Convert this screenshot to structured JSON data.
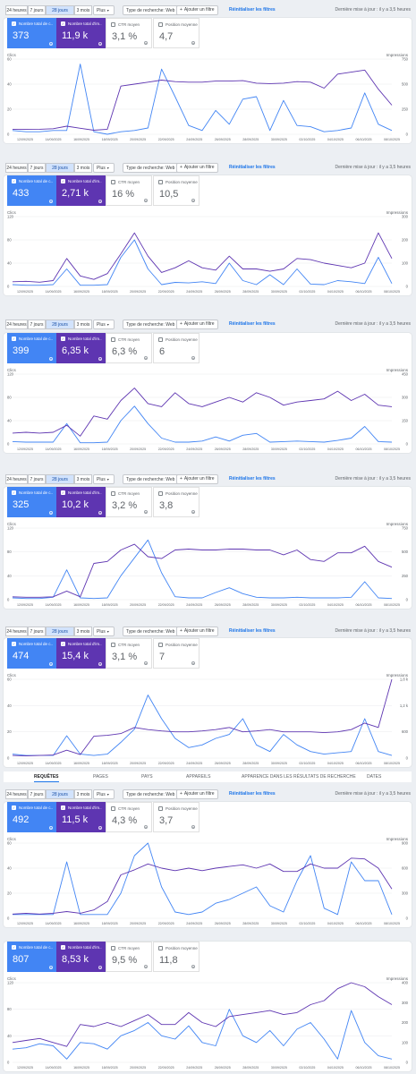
{
  "toolbar": {
    "ranges": [
      "24 heures",
      "7 jours",
      "28 jours",
      "3 mois"
    ],
    "selected_range": "28 jours",
    "more": "Plus",
    "search_type": "Type de recherche: Web",
    "add_filter": "Ajouter un filtre",
    "reset": "Réinitialiser les filtres",
    "status_a": "Dernière mise à jour : il y a 3,5 heures",
    "status_b": "Dernière mise à jour : il y a 3,5 heures"
  },
  "metric_labels": {
    "clicks": "Nombre total de c...",
    "impressions": "Nombre total d'im...",
    "ctr": "CTR moyen",
    "position": "Position moyenne"
  },
  "chart_labels": {
    "left_axis": "Clics",
    "right_axis": "Impressions",
    "dates": [
      "12/09/2025",
      "14/09/2025",
      "16/09/2025",
      "18/09/2025",
      "20/09/2025",
      "22/09/2025",
      "24/09/2025",
      "26/09/2025",
      "28/09/2025",
      "30/09/2025",
      "02/10/2025",
      "04/10/2025",
      "06/10/2025",
      "08/10/2025"
    ]
  },
  "colors": {
    "clicks": "#4285f4",
    "impressions": "#5e35b1",
    "link": "#1a73e8"
  },
  "tabs": {
    "items": [
      "REQUÊTES",
      "PAGES",
      "PAYS",
      "APPAREILS",
      "APPARENCE DANS LES RÉSULTATS DE RECHERCHE",
      "DATES"
    ],
    "active": "REQUÊTES"
  },
  "panels": [
    {
      "toolbar": true,
      "status": "Dernière mise à jour : il y a 3,5 heures",
      "clicks": "373",
      "impressions": "11,9 k",
      "ctr": "3,1 %",
      "position": "4,7",
      "chart_data": {
        "type": "line",
        "x": [
          "12/09/2025",
          "13/09/2025",
          "14/09/2025",
          "15/09/2025",
          "16/09/2025",
          "17/09/2025",
          "18/09/2025",
          "19/09/2025",
          "20/09/2025",
          "21/09/2025",
          "22/09/2025",
          "23/09/2025",
          "24/09/2025",
          "25/09/2025",
          "26/09/2025",
          "27/09/2025",
          "28/09/2025",
          "29/09/2025",
          "30/09/2025",
          "01/10/2025",
          "02/10/2025",
          "03/10/2025",
          "04/10/2025",
          "05/10/2025",
          "06/10/2025",
          "07/10/2025",
          "08/10/2025",
          "09/10/2025",
          "10/10/2025"
        ],
        "left_ticks": [
          "0",
          "20",
          "40",
          "60"
        ],
        "right_ticks": [
          "0",
          "250",
          "500",
          "750"
        ],
        "ylim_left": [
          0,
          60
        ],
        "ylim_right": [
          0,
          750
        ],
        "series": [
          {
            "name": "Clics",
            "axis": "left",
            "values": [
              3,
              2,
              2,
              3,
              3,
              56,
              2,
              0,
              2,
              3,
              5,
              52,
              30,
              7,
              3,
              19,
              8,
              28,
              30,
              3,
              27,
              7,
              6,
              2,
              3,
              5,
              33,
              8,
              3
            ]
          },
          {
            "name": "Impressions",
            "axis": "right",
            "values": [
              50,
              48,
              50,
              55,
              80,
              60,
              40,
              50,
              480,
              500,
              520,
              540,
              525,
              520,
              520,
              530,
              530,
              535,
              510,
              505,
              510,
              525,
              520,
              460,
              600,
              620,
              640,
              450,
              290
            ]
          }
        ]
      }
    },
    {
      "toolbar": true,
      "status": "Dernière mise à jour : il y a 3,5 heures",
      "clicks": "433",
      "impressions": "2,71 k",
      "ctr": "16 %",
      "position": "10,5",
      "chart_data": {
        "type": "line",
        "x": [
          "12/09/2025",
          "13/09/2025",
          "14/09/2025",
          "15/09/2025",
          "16/09/2025",
          "17/09/2025",
          "18/09/2025",
          "19/09/2025",
          "20/09/2025",
          "21/09/2025",
          "22/09/2025",
          "23/09/2025",
          "24/09/2025",
          "25/09/2025",
          "26/09/2025",
          "27/09/2025",
          "28/09/2025",
          "29/09/2025",
          "30/09/2025",
          "01/10/2025",
          "02/10/2025",
          "03/10/2025",
          "04/10/2025",
          "05/10/2025",
          "06/10/2025",
          "07/10/2025",
          "08/10/2025",
          "09/10/2025",
          "10/10/2025"
        ],
        "left_ticks": [
          "0",
          "40",
          "80",
          "120"
        ],
        "right_ticks": [
          "0",
          "100",
          "200",
          "300"
        ],
        "ylim_left": [
          0,
          120
        ],
        "ylim_right": [
          0,
          300
        ],
        "series": [
          {
            "name": "Clics",
            "axis": "left",
            "values": [
              3,
              2,
              2,
              3,
              30,
              2,
              2,
              3,
              50,
              80,
              30,
              3,
              7,
              6,
              8,
              5,
              40,
              10,
              3,
              20,
              3,
              30,
              4,
              3,
              10,
              8,
              5,
              50,
              5
            ]
          },
          {
            "name": "Impressions",
            "axis": "right",
            "values": [
              20,
              22,
              18,
              25,
              120,
              45,
              30,
              55,
              140,
              230,
              130,
              60,
              80,
              110,
              80,
              70,
              130,
              75,
              75,
              65,
              75,
              120,
              115,
              100,
              90,
              80,
              100,
              230,
              120
            ]
          }
        ]
      }
    },
    {
      "toolbar": true,
      "status": "Dernière mise à jour : il y a 3,5 heures",
      "clicks": "399",
      "impressions": "6,35 k",
      "ctr": "6,3 %",
      "position": "6",
      "chart_data": {
        "type": "line",
        "x": [
          "12/09/2025",
          "13/09/2025",
          "14/09/2025",
          "15/09/2025",
          "16/09/2025",
          "17/09/2025",
          "18/09/2025",
          "19/09/2025",
          "20/09/2025",
          "21/09/2025",
          "22/09/2025",
          "23/09/2025",
          "24/09/2025",
          "25/09/2025",
          "26/09/2025",
          "27/09/2025",
          "28/09/2025",
          "29/09/2025",
          "30/09/2025",
          "01/10/2025",
          "02/10/2025",
          "03/10/2025",
          "04/10/2025",
          "05/10/2025",
          "06/10/2025",
          "07/10/2025",
          "08/10/2025",
          "09/10/2025",
          "10/10/2025"
        ],
        "left_ticks": [
          "0",
          "40",
          "80",
          "120"
        ],
        "right_ticks": [
          "0",
          "150",
          "300",
          "450"
        ],
        "ylim_left": [
          0,
          120
        ],
        "ylim_right": [
          0,
          450
        ],
        "series": [
          {
            "name": "Clics",
            "axis": "left",
            "values": [
              4,
              3,
              3,
              3,
              35,
              2,
              2,
              3,
              40,
              65,
              35,
              10,
              3,
              3,
              5,
              12,
              5,
              15,
              18,
              3,
              4,
              5,
              4,
              3,
              6,
              10,
              30,
              4,
              3
            ]
          },
          {
            "name": "Impressions",
            "axis": "right",
            "values": [
              70,
              75,
              70,
              75,
              120,
              50,
              180,
              160,
              280,
              360,
              260,
              240,
              330,
              260,
              240,
              270,
              300,
              270,
              330,
              300,
              250,
              270,
              280,
              290,
              340,
              280,
              320,
              250,
              240
            ]
          }
        ]
      }
    },
    {
      "toolbar": true,
      "status": "Dernière mise à jour : il y a 3,5 heures",
      "clicks": "325",
      "impressions": "10,2 k",
      "ctr": "3,2 %",
      "position": "3,8",
      "chart_data": {
        "type": "line",
        "x": [
          "12/09/2025",
          "13/09/2025",
          "14/09/2025",
          "15/09/2025",
          "16/09/2025",
          "17/09/2025",
          "18/09/2025",
          "19/09/2025",
          "20/09/2025",
          "21/09/2025",
          "22/09/2025",
          "23/09/2025",
          "24/09/2025",
          "25/09/2025",
          "26/09/2025",
          "27/09/2025",
          "28/09/2025",
          "29/09/2025",
          "30/09/2025",
          "01/10/2025",
          "02/10/2025",
          "03/10/2025",
          "04/10/2025",
          "05/10/2025",
          "06/10/2025",
          "07/10/2025",
          "08/10/2025",
          "09/10/2025",
          "10/10/2025"
        ],
        "left_ticks": [
          "0",
          "40",
          "80",
          "120"
        ],
        "right_ticks": [
          "0",
          "250",
          "500",
          "750"
        ],
        "ylim_left": [
          0,
          120
        ],
        "ylim_right": [
          0,
          750
        ],
        "series": [
          {
            "name": "Clics",
            "axis": "left",
            "values": [
              3,
              2,
              2,
              4,
              50,
              3,
              2,
              3,
              40,
              70,
              100,
              45,
              5,
              3,
              3,
              12,
              20,
              10,
              4,
              3,
              3,
              4,
              3,
              3,
              3,
              4,
              30,
              3,
              2
            ]
          },
          {
            "name": "Impressions",
            "axis": "right",
            "values": [
              30,
              25,
              25,
              30,
              90,
              30,
              380,
              400,
              520,
              580,
              450,
              430,
              520,
              530,
              520,
              520,
              530,
              530,
              520,
              520,
              470,
              520,
              420,
              400,
              490,
              490,
              560,
              400,
              340
            ]
          }
        ]
      }
    },
    {
      "toolbar": true,
      "status": "Dernière mise à jour : il y a 3,5 heures",
      "clicks": "474",
      "impressions": "15,4 k",
      "ctr": "3,1 %",
      "position": "7",
      "chart_data": {
        "type": "line",
        "x": [
          "12/09/2025",
          "13/09/2025",
          "14/09/2025",
          "15/09/2025",
          "16/09/2025",
          "17/09/2025",
          "18/09/2025",
          "19/09/2025",
          "20/09/2025",
          "21/09/2025",
          "22/09/2025",
          "23/09/2025",
          "24/09/2025",
          "25/09/2025",
          "26/09/2025",
          "27/09/2025",
          "28/09/2025",
          "29/09/2025",
          "30/09/2025",
          "01/10/2025",
          "02/10/2025",
          "03/10/2025",
          "04/10/2025",
          "05/10/2025",
          "06/10/2025",
          "07/10/2025",
          "08/10/2025",
          "09/10/2025",
          "10/10/2025"
        ],
        "left_ticks": [
          "0",
          "20",
          "40",
          "60"
        ],
        "right_ticks": [
          "0",
          "600",
          "1,2 k",
          "1,8 k"
        ],
        "ylim_left": [
          0,
          60
        ],
        "ylim_right": [
          0,
          1800
        ],
        "series": [
          {
            "name": "Clics",
            "axis": "left",
            "values": [
              3,
              2,
              2,
              2,
              17,
              3,
              2,
              3,
              12,
              22,
              48,
              30,
              15,
              8,
              10,
              15,
              18,
              30,
              10,
              5,
              18,
              10,
              5,
              3,
              4,
              5,
              30,
              5,
              2
            ]
          },
          {
            "name": "Impressions",
            "axis": "right",
            "values": [
              60,
              50,
              60,
              70,
              180,
              80,
              500,
              520,
              560,
              700,
              650,
              620,
              600,
              600,
              620,
              650,
              700,
              600,
              620,
              650,
              600,
              600,
              600,
              580,
              600,
              650,
              800,
              700,
              1850
            ]
          }
        ]
      }
    },
    {
      "toolbar": true,
      "status": "Dernière mise à jour : il y a 3,5 heures",
      "clicks": "492",
      "impressions": "11,5 k",
      "ctr": "4,3 %",
      "position": "3,7",
      "chart_data": {
        "type": "line",
        "x": [
          "12/09/2025",
          "13/09/2025",
          "14/09/2025",
          "15/09/2025",
          "16/09/2025",
          "17/09/2025",
          "18/09/2025",
          "19/09/2025",
          "20/09/2025",
          "21/09/2025",
          "22/09/2025",
          "23/09/2025",
          "24/09/2025",
          "25/09/2025",
          "26/09/2025",
          "27/09/2025",
          "28/09/2025",
          "29/09/2025",
          "30/09/2025",
          "01/10/2025",
          "02/10/2025",
          "03/10/2025",
          "04/10/2025",
          "05/10/2025",
          "06/10/2025",
          "07/10/2025",
          "08/10/2025",
          "09/10/2025",
          "10/10/2025"
        ],
        "left_ticks": [
          "0",
          "20",
          "40",
          "60"
        ],
        "right_ticks": [
          "0",
          "300",
          "600",
          "900"
        ],
        "ylim_left": [
          0,
          60
        ],
        "ylim_right": [
          0,
          900
        ],
        "series": [
          {
            "name": "Clics",
            "axis": "left",
            "values": [
              3,
              3,
              3,
              3,
              45,
              3,
              3,
              3,
              20,
              50,
              75,
              25,
              5,
              3,
              5,
              12,
              15,
              20,
              25,
              10,
              5,
              30,
              50,
              8,
              3,
              45,
              30,
              30,
              3
            ]
          },
          {
            "name": "Impressions",
            "axis": "right",
            "values": [
              50,
              60,
              50,
              60,
              80,
              60,
              100,
              200,
              520,
              580,
              650,
              600,
              570,
              600,
              570,
              600,
              620,
              640,
              600,
              650,
              560,
              560,
              650,
              600,
              600,
              720,
              710,
              600,
              350
            ]
          }
        ]
      }
    },
    {
      "toolbar": false,
      "clicks": "807",
      "impressions": "8,53 k",
      "ctr": "9,5 %",
      "position": "11,8",
      "chart_data": {
        "type": "line",
        "x": [
          "12/09/2025",
          "13/09/2025",
          "14/09/2025",
          "15/09/2025",
          "16/09/2025",
          "17/09/2025",
          "18/09/2025",
          "19/09/2025",
          "20/09/2025",
          "21/09/2025",
          "22/09/2025",
          "23/09/2025",
          "24/09/2025",
          "25/09/2025",
          "26/09/2025",
          "27/09/2025",
          "28/09/2025",
          "29/09/2025",
          "30/09/2025",
          "01/10/2025",
          "02/10/2025",
          "03/10/2025",
          "04/10/2025",
          "05/10/2025",
          "06/10/2025",
          "07/10/2025",
          "08/10/2025",
          "09/10/2025",
          "10/10/2025"
        ],
        "left_ticks": [
          "0",
          "40",
          "80",
          "120"
        ],
        "right_ticks": [
          "0",
          "100",
          "200",
          "300",
          "400"
        ],
        "ylim_left": [
          0,
          120
        ],
        "ylim_right": [
          0,
          400
        ],
        "series": [
          {
            "name": "Clics",
            "axis": "left",
            "values": [
              20,
              22,
              28,
              25,
              5,
              30,
              28,
              20,
              40,
              48,
              60,
              40,
              35,
              55,
              30,
              25,
              80,
              40,
              30,
              48,
              25,
              50,
              60,
              35,
              5,
              78,
              30,
              10,
              5
            ]
          },
          {
            "name": "Impressions",
            "axis": "right",
            "values": [
              100,
              110,
              120,
              100,
              80,
              190,
              180,
              200,
              180,
              210,
              240,
              190,
              190,
              250,
              200,
              180,
              230,
              240,
              250,
              260,
              240,
              250,
              290,
              310,
              370,
              410,
              380,
              330,
              290
            ]
          }
        ]
      }
    }
  ]
}
